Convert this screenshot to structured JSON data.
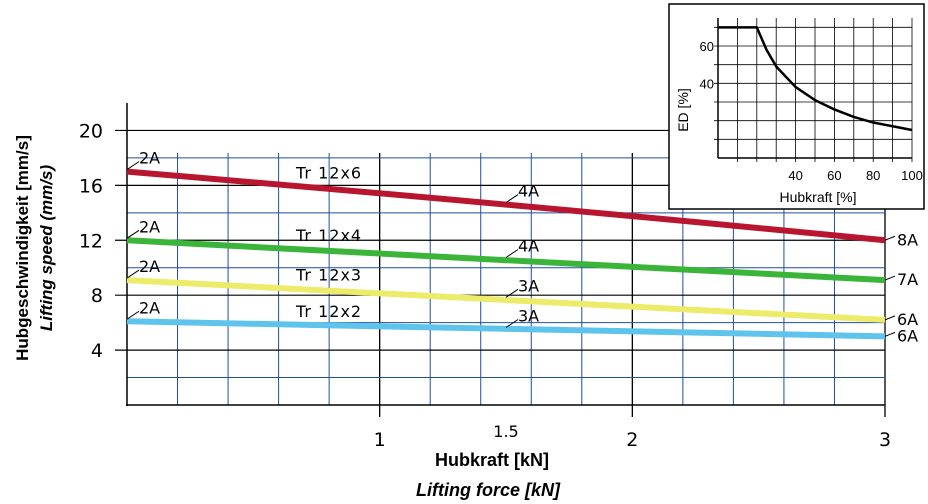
{
  "chart_data": [
    {
      "type": "line",
      "ylabel": "Hubgeschwindigkeit [mm/s]",
      "ylabel_en": "Lifting speed (mm/s)",
      "xlabel": "Hubkraft [kN]",
      "xlabel_en": "Lifting force [kN]",
      "xlim": [
        0,
        3
      ],
      "ylim": [
        0,
        22
      ],
      "x_ticks": [
        {
          "value": 1,
          "label": "1"
        },
        {
          "value": 1.5,
          "label": "1.5"
        },
        {
          "value": 2,
          "label": "2"
        },
        {
          "value": 3,
          "label": "3"
        }
      ],
      "y_ticks": [
        {
          "value": 4,
          "label": "4"
        },
        {
          "value": 8,
          "label": "8"
        },
        {
          "value": 12,
          "label": "12"
        },
        {
          "value": 16,
          "label": "16"
        },
        {
          "value": 20,
          "label": "20"
        }
      ],
      "grid": true,
      "series": [
        {
          "name": "Tr 12x6",
          "color": "#b8162e",
          "x": [
            0,
            1.5,
            3
          ],
          "y": [
            17.0,
            14.6,
            12.0
          ],
          "current_labels": [
            {
              "x": 0,
              "text": "2A"
            },
            {
              "x": 1.5,
              "text": "4A"
            },
            {
              "x": 3,
              "text": "8A"
            }
          ]
        },
        {
          "name": "Tr 12x4",
          "color": "#3ab53a",
          "x": [
            0,
            1.5,
            3
          ],
          "y": [
            12.0,
            10.6,
            9.1
          ],
          "current_labels": [
            {
              "x": 0,
              "text": "2A"
            },
            {
              "x": 1.5,
              "text": "4A"
            },
            {
              "x": 3,
              "text": "7A"
            }
          ]
        },
        {
          "name": "Tr 12x3",
          "color": "#ecec6a",
          "x": [
            0,
            1.5,
            3
          ],
          "y": [
            9.1,
            7.7,
            6.2
          ],
          "current_labels": [
            {
              "x": 0,
              "text": "2A"
            },
            {
              "x": 1.5,
              "text": "3A"
            },
            {
              "x": 3,
              "text": "6A"
            }
          ]
        },
        {
          "name": "Tr 12x2",
          "color": "#5ec4ec",
          "x": [
            0,
            1.5,
            3
          ],
          "y": [
            6.1,
            5.5,
            5.0
          ],
          "current_labels": [
            {
              "x": 0,
              "text": "2A"
            },
            {
              "x": 1.5,
              "text": "3A"
            },
            {
              "x": 3,
              "text": "6A"
            }
          ]
        }
      ]
    },
    {
      "type": "line",
      "ylabel": "ED [%]",
      "xlabel": "Hubkraft [%]",
      "xlim": [
        0,
        100
      ],
      "ylim": [
        0,
        75
      ],
      "x_ticks": [
        {
          "value": 40,
          "label": "40"
        },
        {
          "value": 60,
          "label": "60"
        },
        {
          "value": 80,
          "label": "80"
        },
        {
          "value": 100,
          "label": "100"
        }
      ],
      "y_ticks": [
        {
          "value": 40,
          "label": "40"
        },
        {
          "value": 60,
          "label": "60"
        }
      ],
      "grid": true,
      "series": [
        {
          "color": "#000000",
          "x": [
            0,
            20,
            25,
            30,
            40,
            50,
            60,
            70,
            80,
            90,
            100
          ],
          "y": [
            70,
            70,
            58,
            49,
            38,
            31,
            26,
            22,
            19,
            17,
            15
          ]
        }
      ]
    }
  ]
}
